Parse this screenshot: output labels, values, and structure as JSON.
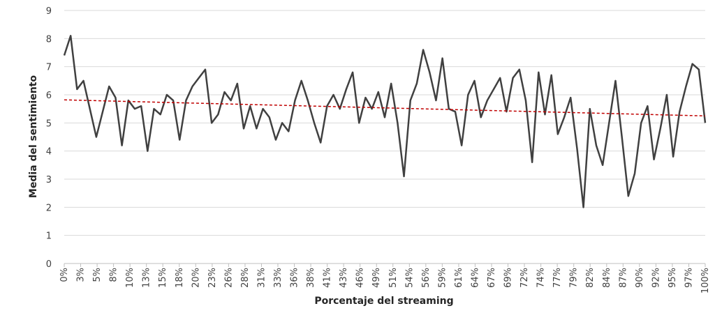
{
  "chart_data": {
    "type": "line",
    "y_label": "Media del sentimiento",
    "x_label": "Porcentaje del streaming",
    "x": [
      0,
      1,
      2,
      3,
      4,
      5,
      6,
      7,
      8,
      9,
      10,
      11,
      12,
      13,
      14,
      15,
      16,
      17,
      18,
      19,
      20,
      21,
      22,
      23,
      24,
      25,
      26,
      27,
      28,
      29,
      30,
      31,
      32,
      33,
      34,
      35,
      36,
      37,
      38,
      39,
      40,
      41,
      42,
      43,
      44,
      45,
      46,
      47,
      48,
      49,
      50,
      51,
      52,
      53,
      54,
      55,
      56,
      57,
      58,
      59,
      60,
      61,
      62,
      63,
      64,
      65,
      66,
      67,
      68,
      69,
      70,
      71,
      72,
      73,
      74,
      75,
      76,
      77,
      78,
      79,
      80,
      81,
      82,
      83,
      84,
      85,
      86,
      87,
      88,
      89,
      90,
      91,
      92,
      93,
      94,
      95,
      96,
      97,
      98,
      99,
      100
    ],
    "series": [
      {
        "color": "#404040",
        "values": [
          7.4,
          8.1,
          6.2,
          6.5,
          5.5,
          4.5,
          5.4,
          6.3,
          5.9,
          4.2,
          5.8,
          5.5,
          5.6,
          4.0,
          5.5,
          5.3,
          6.0,
          5.8,
          4.4,
          5.8,
          6.3,
          6.6,
          6.9,
          5.0,
          5.3,
          6.1,
          5.8,
          6.4,
          4.8,
          5.6,
          4.8,
          5.5,
          5.2,
          4.4,
          5.0,
          4.7,
          5.8,
          6.5,
          5.8,
          5.0,
          4.3,
          5.6,
          6.0,
          5.5,
          6.2,
          6.8,
          5.0,
          5.9,
          5.5,
          6.1,
          5.2,
          6.4,
          5.0,
          3.1,
          5.8,
          6.4,
          7.6,
          6.8,
          5.8,
          7.3,
          5.5,
          5.4,
          4.2,
          6.0,
          6.5,
          5.2,
          5.8,
          6.2,
          6.6,
          5.4,
          6.6,
          6.9,
          5.8,
          3.6,
          6.8,
          5.3,
          6.7,
          4.6,
          5.2,
          5.9,
          4.1,
          2.0,
          5.5,
          4.2,
          3.5,
          5.0,
          6.5,
          4.5,
          2.4,
          3.2,
          5.0,
          5.6,
          3.7,
          4.8,
          6.0,
          3.8,
          5.4,
          6.3,
          7.1,
          6.9,
          5.0
        ]
      }
    ],
    "trendline": {
      "color": "#c00000",
      "values": [
        5.82,
        5.25
      ]
    },
    "ylim": [
      0,
      9
    ],
    "yticks": [
      0,
      1,
      2,
      3,
      4,
      5,
      6,
      7,
      8,
      9
    ],
    "xlim": [
      0,
      100
    ],
    "xticks": [
      {
        "value": 0,
        "label": "0%"
      },
      {
        "value": 2.56,
        "label": "3%"
      },
      {
        "value": 5.13,
        "label": "5%"
      },
      {
        "value": 7.69,
        "label": "8%"
      },
      {
        "value": 10.26,
        "label": "10%"
      },
      {
        "value": 12.82,
        "label": "13%"
      },
      {
        "value": 15.38,
        "label": "15%"
      },
      {
        "value": 17.95,
        "label": "18%"
      },
      {
        "value": 20.51,
        "label": "20%"
      },
      {
        "value": 23.08,
        "label": "23%"
      },
      {
        "value": 25.64,
        "label": "26%"
      },
      {
        "value": 28.21,
        "label": "28%"
      },
      {
        "value": 30.77,
        "label": "31%"
      },
      {
        "value": 33.33,
        "label": "33%"
      },
      {
        "value": 35.9,
        "label": "36%"
      },
      {
        "value": 38.46,
        "label": "38%"
      },
      {
        "value": 41.03,
        "label": "41%"
      },
      {
        "value": 43.59,
        "label": "43%"
      },
      {
        "value": 46.15,
        "label": "46%"
      },
      {
        "value": 48.72,
        "label": "49%"
      },
      {
        "value": 51.28,
        "label": "51%"
      },
      {
        "value": 53.85,
        "label": "54%"
      },
      {
        "value": 56.41,
        "label": "56%"
      },
      {
        "value": 58.97,
        "label": "59%"
      },
      {
        "value": 61.54,
        "label": "61%"
      },
      {
        "value": 64.1,
        "label": "64%"
      },
      {
        "value": 66.67,
        "label": "67%"
      },
      {
        "value": 69.23,
        "label": "69%"
      },
      {
        "value": 71.79,
        "label": "72%"
      },
      {
        "value": 74.36,
        "label": "74%"
      },
      {
        "value": 76.92,
        "label": "77%"
      },
      {
        "value": 79.49,
        "label": "79%"
      },
      {
        "value": 82.05,
        "label": "82%"
      },
      {
        "value": 84.62,
        "label": "84%"
      },
      {
        "value": 87.18,
        "label": "87%"
      },
      {
        "value": 89.74,
        "label": "90%"
      },
      {
        "value": 92.31,
        "label": "92%"
      },
      {
        "value": 94.87,
        "label": "95%"
      },
      {
        "value": 97.44,
        "label": "97%"
      },
      {
        "value": 100,
        "label": "100%"
      }
    ],
    "grid": true
  }
}
